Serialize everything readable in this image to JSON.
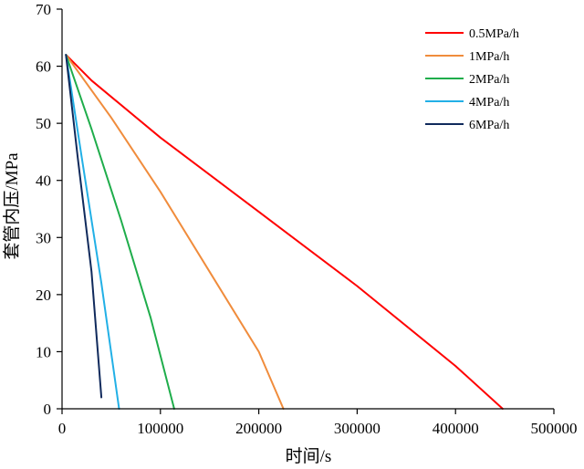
{
  "chart_data": {
    "type": "line",
    "title": "",
    "xlabel": "时间/s",
    "ylabel": "套管内压/MPa",
    "xlim": [
      0,
      500000
    ],
    "ylim": [
      0,
      70
    ],
    "xticks": [
      0,
      100000,
      200000,
      300000,
      400000,
      500000
    ],
    "xtick_labels": [
      "0",
      "100000",
      "200000",
      "300000",
      "400000",
      "500000"
    ],
    "yticks": [
      0,
      10,
      20,
      30,
      40,
      50,
      60,
      70
    ],
    "ytick_labels": [
      "0",
      "10",
      "20",
      "30",
      "40",
      "50",
      "60",
      "70"
    ],
    "grid": false,
    "legend_position": "top-right",
    "series": [
      {
        "name": "0.5MPa/h",
        "color": "#ff0000",
        "x": [
          4000,
          30000,
          100000,
          200000,
          300000,
          400000,
          448000
        ],
        "y": [
          62,
          57.5,
          47.5,
          34.5,
          21.5,
          7.5,
          0
        ]
      },
      {
        "name": "1MPa/h",
        "color": "#f08c3c",
        "x": [
          4000,
          50000,
          100000,
          150000,
          200000,
          225000
        ],
        "y": [
          62,
          51,
          38,
          24,
          10,
          0
        ]
      },
      {
        "name": "2MPa/h",
        "color": "#1fad4b",
        "x": [
          4000,
          30000,
          60000,
          90000,
          114000
        ],
        "y": [
          62,
          49,
          33,
          16,
          0
        ]
      },
      {
        "name": "4MPa/h",
        "color": "#22b0e6",
        "x": [
          4000,
          20000,
          40000,
          58000
        ],
        "y": [
          62,
          44,
          22,
          0
        ]
      },
      {
        "name": "6MPa/h",
        "color": "#102a5c",
        "x": [
          4000,
          16000,
          30000,
          40000
        ],
        "y": [
          62,
          44,
          24,
          2
        ]
      }
    ]
  }
}
